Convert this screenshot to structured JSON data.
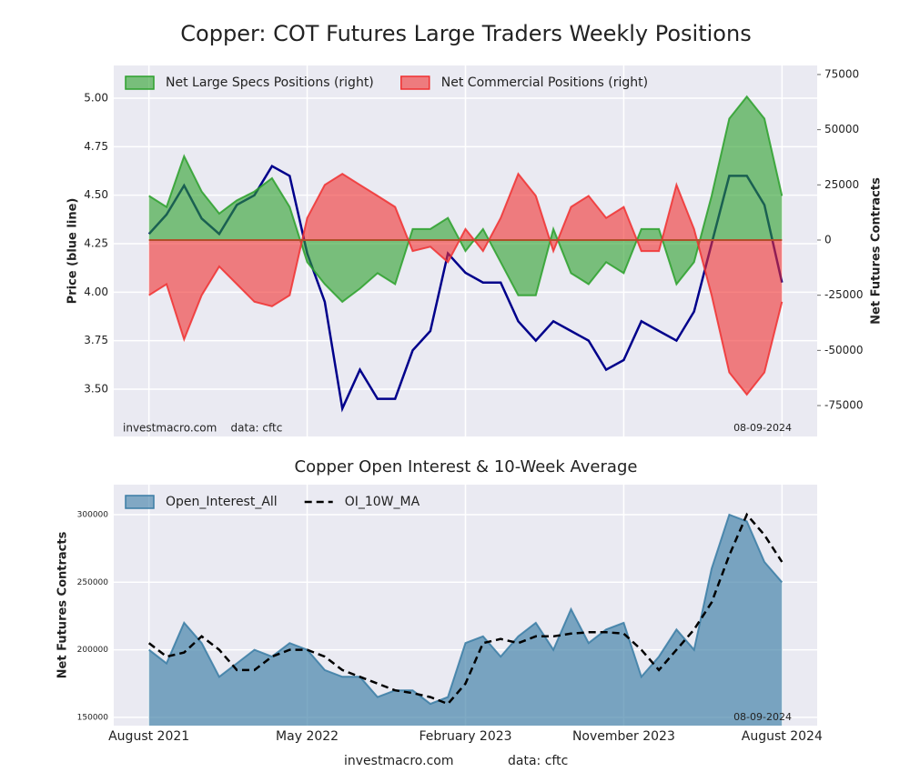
{
  "chart_data": [
    {
      "type": "line",
      "title": "Copper: COT Futures Large Traders Weekly Positions",
      "ylabel": "Price (blue line)",
      "y2label": "Net Futures Contracts",
      "annotation_left": "investmacro.com    data: cftc",
      "annotation_right": "08-09-2024",
      "x": [
        "2021-08",
        "2021-09",
        "2021-10",
        "2021-11",
        "2021-12",
        "2022-01",
        "2022-02",
        "2022-03",
        "2022-04",
        "2022-05",
        "2022-06",
        "2022-07",
        "2022-08",
        "2022-09",
        "2022-10",
        "2022-11",
        "2022-12",
        "2023-01",
        "2023-02",
        "2023-03",
        "2023-04",
        "2023-05",
        "2023-06",
        "2023-07",
        "2023-08",
        "2023-09",
        "2023-10",
        "2023-11",
        "2023-12",
        "2024-01",
        "2024-02",
        "2024-03",
        "2024-04",
        "2024-05",
        "2024-06",
        "2024-07",
        "2024-08"
      ],
      "xlim": [
        "2021-06",
        "2024-10"
      ],
      "ylim": [
        3.256,
        5.169
      ],
      "yticks": [
        {
          "value": 3.5,
          "label": "3.50"
        },
        3.75,
        {
          "value": 4.0,
          "label": "4.00"
        },
        4.25,
        {
          "value": 4.5,
          "label": "4.50"
        },
        4.75,
        {
          "value": 5.0,
          "label": "5.00"
        }
      ],
      "y2lim": [
        -89000,
        79100
      ],
      "y2ticks": [
        -75000,
        -50000,
        -25000,
        0,
        25000,
        50000,
        75000
      ],
      "grid": true,
      "legend": "upper left",
      "series": [
        {
          "color": "#00008b",
          "axis": "y",
          "values": [
            4.3,
            4.4,
            4.55,
            4.38,
            4.3,
            4.45,
            4.5,
            4.65,
            4.6,
            4.2,
            3.95,
            3.4,
            3.6,
            3.45,
            3.45,
            3.7,
            3.8,
            4.2,
            4.1,
            4.05,
            4.05,
            3.85,
            3.75,
            3.85,
            3.8,
            3.75,
            3.6,
            3.65,
            3.85,
            3.8,
            3.75,
            3.9,
            4.25,
            4.6,
            4.6,
            4.45,
            4.05
          ]
        },
        {
          "name": "Net Large Specs Positions (right)",
          "color": "#2ca02c",
          "axis": "y2",
          "fill": true,
          "values": [
            20000,
            15000,
            38000,
            22000,
            12000,
            18000,
            22000,
            28000,
            15000,
            -10000,
            -20000,
            -28000,
            -22000,
            -15000,
            -20000,
            5000,
            5000,
            10000,
            -5000,
            5000,
            -10000,
            -25000,
            -25000,
            5000,
            -15000,
            -20000,
            -10000,
            -15000,
            5000,
            5000,
            -20000,
            -10000,
            20000,
            55000,
            65000,
            55000,
            20000
          ]
        },
        {
          "name": "Net Commercial Positions (right)",
          "color": "#f03030",
          "axis": "y2",
          "fill": true,
          "values": [
            -25000,
            -20000,
            -45000,
            -25000,
            -12000,
            -20000,
            -28000,
            -30000,
            -25000,
            10000,
            25000,
            30000,
            25000,
            20000,
            15000,
            -5000,
            -3000,
            -10000,
            5000,
            -5000,
            10000,
            30000,
            20000,
            -5000,
            15000,
            20000,
            10000,
            15000,
            -5000,
            -5000,
            25000,
            5000,
            -25000,
            -60000,
            -70000,
            -60000,
            -28000
          ]
        }
      ]
    },
    {
      "type": "area",
      "title": "Copper Open Interest & 10-Week Average",
      "ylabel": "Net Futures Contracts",
      "annotation_right": "08-09-2024",
      "footer_left": "investmacro.com",
      "footer_right": "data: cftc",
      "x": [
        "2021-08",
        "2021-09",
        "2021-10",
        "2021-11",
        "2021-12",
        "2022-01",
        "2022-02",
        "2022-03",
        "2022-04",
        "2022-05",
        "2022-06",
        "2022-07",
        "2022-08",
        "2022-09",
        "2022-10",
        "2022-11",
        "2022-12",
        "2023-01",
        "2023-02",
        "2023-03",
        "2023-04",
        "2023-05",
        "2023-06",
        "2023-07",
        "2023-08",
        "2023-09",
        "2023-10",
        "2023-11",
        "2023-12",
        "2024-01",
        "2024-02",
        "2024-03",
        "2024-04",
        "2024-05",
        "2024-06",
        "2024-07",
        "2024-08"
      ],
      "xlim": [
        "2021-06",
        "2024-10"
      ],
      "xticks": [
        {
          "value": "2021-08",
          "label": "August 2021"
        },
        {
          "value": "2022-05",
          "label": "May 2022"
        },
        {
          "value": "2023-02",
          "label": "February 2023"
        },
        {
          "value": "2023-11",
          "label": "November 2023"
        },
        {
          "value": "2024-08",
          "label": "August 2024"
        }
      ],
      "ylim": [
        143900,
        322200
      ],
      "yticks": [
        150000,
        200000,
        250000,
        300000
      ],
      "grid": true,
      "legend": "upper left",
      "series": [
        {
          "name": "Open_Interest_All",
          "color": "#3a7ca5",
          "fill": true,
          "values": [
            200000,
            190000,
            220000,
            205000,
            180000,
            190000,
            200000,
            195000,
            205000,
            200000,
            185000,
            180000,
            180000,
            165000,
            170000,
            170000,
            160000,
            165000,
            205000,
            210000,
            195000,
            210000,
            220000,
            200000,
            230000,
            205000,
            215000,
            220000,
            180000,
            195000,
            215000,
            200000,
            260000,
            300000,
            295000,
            265000,
            250000
          ]
        },
        {
          "name": "OI_10W_MA",
          "color": "#000000",
          "dash": true,
          "values": [
            205000,
            195000,
            198000,
            210000,
            200000,
            185000,
            185000,
            195000,
            200000,
            200000,
            195000,
            185000,
            180000,
            175000,
            170000,
            168000,
            165000,
            160000,
            175000,
            205000,
            208000,
            205000,
            210000,
            210000,
            212000,
            213000,
            213000,
            212000,
            200000,
            185000,
            200000,
            215000,
            235000,
            270000,
            300000,
            285000,
            265000
          ]
        }
      ]
    }
  ]
}
